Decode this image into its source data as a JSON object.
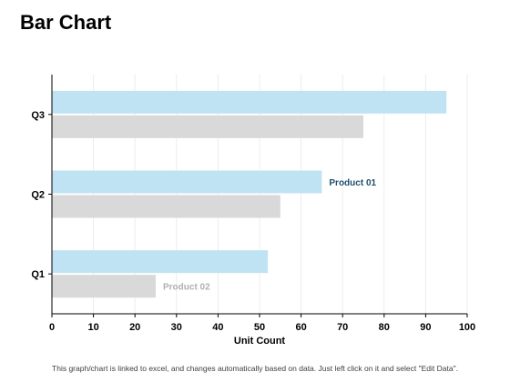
{
  "page": {
    "title": "Bar Chart",
    "footnote": "This graph/chart is linked to excel, and changes automatically based on data. Just left click on it and select \"Edit Data\"."
  },
  "chart_data": {
    "type": "bar",
    "orientation": "horizontal",
    "title": "",
    "xlabel": "Unit Count",
    "ylabel": "",
    "categories": [
      "Q1",
      "Q2",
      "Q3"
    ],
    "series": [
      {
        "name": "Product 01",
        "values": [
          52,
          65,
          95
        ],
        "color": "#bfe3f2",
        "label_color": "#1f4e6e"
      },
      {
        "name": "Product 02",
        "values": [
          25,
          55,
          75
        ],
        "color": "#d9d9d9",
        "label_color": "#b0b0b0"
      }
    ],
    "xlim": [
      0,
      100
    ],
    "xticks": [
      0,
      10,
      20,
      30,
      40,
      50,
      60,
      70,
      80,
      90,
      100
    ],
    "grid": "vertical",
    "series_labels": [
      {
        "series": 0,
        "category": "Q2"
      },
      {
        "series": 1,
        "category": "Q1"
      }
    ]
  }
}
